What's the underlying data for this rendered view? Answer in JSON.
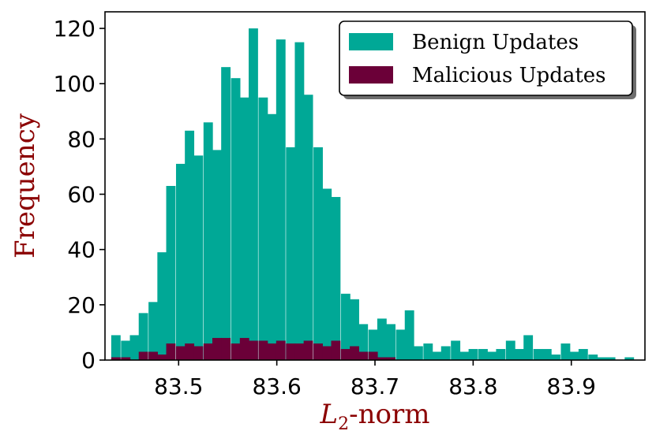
{
  "chart_data": {
    "type": "bar",
    "xlabel": "-norm",
    "xlabel_symbol": "L",
    "xlabel_subscript": "2",
    "ylabel": "Frequency",
    "xlim": [
      83.425,
      83.975
    ],
    "ylim": [
      0,
      126
    ],
    "xticks": [
      83.5,
      83.6,
      83.7,
      83.8,
      83.9
    ],
    "xtick_labels": [
      "83.5",
      "83.6",
      "83.7",
      "83.8",
      "83.9"
    ],
    "yticks": [
      0,
      20,
      40,
      60,
      80,
      100,
      120
    ],
    "ytick_labels": [
      "0",
      "20",
      "40",
      "60",
      "80",
      "100",
      "120"
    ],
    "bin_width": 0.0093,
    "legend_position": "top-right",
    "series": [
      {
        "name": "Benign Updates",
        "color": "#00a896",
        "x": [
          83.436,
          83.446,
          83.455,
          83.464,
          83.474,
          83.483,
          83.492,
          83.502,
          83.511,
          83.52,
          83.53,
          83.539,
          83.548,
          83.558,
          83.567,
          83.576,
          83.586,
          83.595,
          83.604,
          83.614,
          83.623,
          83.632,
          83.642,
          83.651,
          83.66,
          83.67,
          83.679,
          83.688,
          83.698,
          83.707,
          83.716,
          83.726,
          83.735,
          83.744,
          83.754,
          83.763,
          83.772,
          83.782,
          83.791,
          83.8,
          83.81,
          83.819,
          83.828,
          83.838,
          83.847,
          83.856,
          83.866,
          83.875,
          83.884,
          83.894,
          83.903,
          83.912,
          83.922,
          83.931,
          83.94,
          83.95,
          83.959
        ],
        "values": [
          9,
          7,
          9,
          17,
          21,
          39,
          63,
          71,
          83,
          74,
          86,
          76,
          106,
          102,
          95,
          120,
          95,
          89,
          116,
          77,
          115,
          96,
          77,
          62,
          59,
          24,
          22,
          13,
          11,
          15,
          13,
          11,
          18,
          5,
          6,
          3,
          5,
          7,
          3,
          4,
          4,
          3,
          4,
          7,
          4,
          9,
          4,
          4,
          2,
          6,
          3,
          4,
          2,
          1,
          1,
          0,
          1
        ]
      },
      {
        "name": "Malicious Updates",
        "color": "#6b0038",
        "x": [
          83.436,
          83.446,
          83.455,
          83.464,
          83.474,
          83.483,
          83.492,
          83.502,
          83.511,
          83.52,
          83.53,
          83.539,
          83.548,
          83.558,
          83.567,
          83.576,
          83.586,
          83.595,
          83.604,
          83.614,
          83.623,
          83.632,
          83.642,
          83.651,
          83.66,
          83.67,
          83.679,
          83.688,
          83.698,
          83.707,
          83.716
        ],
        "values": [
          1,
          1,
          0,
          3,
          3,
          2,
          6,
          5,
          6,
          5,
          6,
          8,
          8,
          6,
          8,
          7,
          7,
          6,
          7,
          6,
          6,
          7,
          6,
          5,
          7,
          4,
          5,
          3,
          3,
          1,
          1
        ]
      }
    ]
  }
}
